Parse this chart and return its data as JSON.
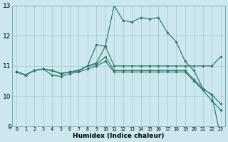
{
  "xlabel": "Humidex (Indice chaleur)",
  "bg_color": "#cce8ee",
  "grid_color": "#aacccc",
  "line_color": "#2e7d6e",
  "xlim": [
    -0.5,
    23.5
  ],
  "ylim": [
    9,
    13
  ],
  "yticks": [
    9,
    10,
    11,
    12,
    13
  ],
  "xticks": [
    0,
    1,
    2,
    3,
    4,
    5,
    6,
    7,
    8,
    9,
    10,
    11,
    12,
    13,
    14,
    15,
    16,
    17,
    18,
    19,
    20,
    21,
    22,
    23
  ],
  "series": [
    {
      "x": [
        0,
        1,
        2,
        3,
        4,
        5,
        6,
        7,
        8,
        9,
        10,
        11,
        12,
        13,
        14,
        15,
        16,
        17,
        18,
        19,
        20,
        21,
        22,
        23
      ],
      "y": [
        10.8,
        10.7,
        10.85,
        10.9,
        10.85,
        10.75,
        10.8,
        10.85,
        11.0,
        11.7,
        11.65,
        13.0,
        12.5,
        12.45,
        12.6,
        12.55,
        12.6,
        12.1,
        11.8,
        11.15,
        10.85,
        10.25,
        10.05,
        8.65
      ]
    },
    {
      "x": [
        0,
        1,
        2,
        3,
        4,
        5,
        6,
        7,
        8,
        9,
        10,
        11,
        12,
        13,
        14,
        15,
        16,
        17,
        18,
        19,
        20,
        21,
        22,
        23
      ],
      "y": [
        10.8,
        10.7,
        10.85,
        10.9,
        10.85,
        10.75,
        10.8,
        10.85,
        11.0,
        11.1,
        11.65,
        11.0,
        11.0,
        11.0,
        11.0,
        11.0,
        11.0,
        11.0,
        11.0,
        11.0,
        11.0,
        11.0,
        11.0,
        11.3
      ]
    },
    {
      "x": [
        0,
        1,
        2,
        3,
        4,
        5,
        6,
        7,
        8,
        9,
        10,
        11,
        12,
        13,
        14,
        15,
        16,
        17,
        18,
        19,
        20,
        21,
        22,
        23
      ],
      "y": [
        10.8,
        10.7,
        10.85,
        10.9,
        10.85,
        10.75,
        10.8,
        10.85,
        11.0,
        11.05,
        11.3,
        10.85,
        10.85,
        10.85,
        10.85,
        10.85,
        10.85,
        10.85,
        10.85,
        10.85,
        10.55,
        10.25,
        10.05,
        9.75
      ]
    },
    {
      "x": [
        0,
        1,
        2,
        3,
        4,
        5,
        6,
        7,
        8,
        9,
        10,
        11,
        12,
        13,
        14,
        15,
        16,
        17,
        18,
        19,
        20,
        21,
        22,
        23
      ],
      "y": [
        10.8,
        10.7,
        10.85,
        10.9,
        10.7,
        10.65,
        10.75,
        10.8,
        10.9,
        11.0,
        11.15,
        10.8,
        10.8,
        10.8,
        10.8,
        10.8,
        10.8,
        10.8,
        10.8,
        10.8,
        10.5,
        10.2,
        9.85,
        9.55
      ]
    }
  ]
}
